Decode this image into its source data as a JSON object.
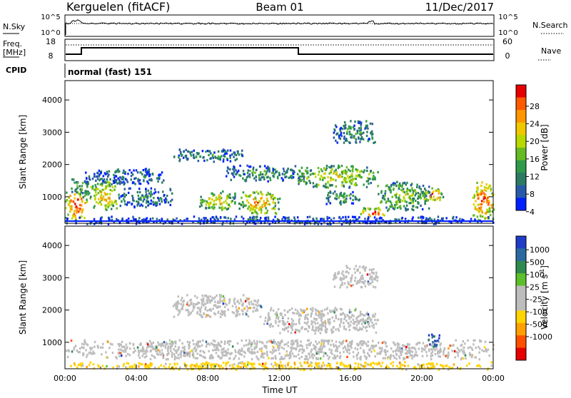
{
  "header": {
    "station": "Kerguelen (fitACF)",
    "beam": "Beam 01",
    "date": "11/Dec/2017"
  },
  "noise_panel": {
    "left_label": "N.Sky",
    "right_label": "N.Search",
    "y_ticks_left": [
      "10^5",
      "10^0"
    ],
    "y_ticks_right": [
      "10^5",
      "10^0"
    ]
  },
  "freq_panel": {
    "left_label_line1": "Freq.",
    "left_label_line2": "[MHz]",
    "right_label": "Nave",
    "y_ticks_left": [
      "18",
      "8"
    ],
    "y_ticks_right": [
      "60",
      "0"
    ]
  },
  "cpid_panel": {
    "label": "CPID",
    "program": "normal (fast) 151"
  },
  "chart_data": [
    {
      "type": "heatmap",
      "name": "power",
      "ylabel": "Slant Range [km]",
      "y_ticks": [
        1000,
        2000,
        3000,
        4000
      ],
      "xlim": [
        0,
        24
      ],
      "ylim": [
        180,
        4600
      ],
      "colorbar": {
        "label": "Power [dB]",
        "ticks": [
          "28",
          "24",
          "20",
          "16",
          "12",
          "8",
          "4"
        ],
        "colors": [
          "#e60000",
          "#ff5a00",
          "#ff9600",
          "#f0c800",
          "#b8d800",
          "#66bb22",
          "#2e9a4a",
          "#2c7a62",
          "#285aa8",
          "#0020ff"
        ]
      },
      "echo_regions": [
        {
          "t0": 0.0,
          "t1": 1.2,
          "r0": 300,
          "r1": 1300,
          "level": 0.9
        },
        {
          "t0": 0.3,
          "t1": 1.4,
          "r0": 1000,
          "r1": 1600,
          "level": 0.35
        },
        {
          "t0": 1.3,
          "t1": 3.0,
          "r0": 600,
          "r1": 1500,
          "level": 0.65
        },
        {
          "t0": 3.0,
          "t1": 6.0,
          "r0": 700,
          "r1": 1300,
          "level": 0.25
        },
        {
          "t0": 1.0,
          "t1": 5.5,
          "r0": 1400,
          "r1": 1900,
          "level": 0.2
        },
        {
          "t0": 6.0,
          "t1": 10.0,
          "r0": 2100,
          "r1": 2500,
          "level": 0.28
        },
        {
          "t0": 7.5,
          "t1": 9.5,
          "r0": 600,
          "r1": 1200,
          "level": 0.6
        },
        {
          "t0": 9.7,
          "t1": 12.0,
          "r0": 500,
          "r1": 1200,
          "level": 0.7
        },
        {
          "t0": 9.0,
          "t1": 13.0,
          "r0": 1500,
          "r1": 2000,
          "level": 0.3
        },
        {
          "t0": 13.0,
          "t1": 17.5,
          "r0": 1300,
          "r1": 2000,
          "level": 0.55
        },
        {
          "t0": 15.0,
          "t1": 17.5,
          "r0": 2700,
          "r1": 3400,
          "level": 0.3
        },
        {
          "t0": 14.5,
          "t1": 16.5,
          "r0": 800,
          "r1": 1200,
          "level": 0.35
        },
        {
          "t0": 17.5,
          "t1": 20.5,
          "r0": 600,
          "r1": 1500,
          "level": 0.45
        },
        {
          "t0": 20.0,
          "t1": 21.2,
          "r0": 900,
          "r1": 1300,
          "level": 0.75
        },
        {
          "t0": 16.5,
          "t1": 18.0,
          "r0": 400,
          "r1": 700,
          "level": 0.8
        },
        {
          "t0": 22.8,
          "t1": 24.0,
          "r0": 300,
          "r1": 1500,
          "level": 0.85
        },
        {
          "t0": 0.0,
          "t1": 24.0,
          "r0": 180,
          "r1": 420,
          "level": 0.15
        }
      ]
    },
    {
      "type": "heatmap",
      "name": "velocity",
      "ylabel": "Slant Range [km]",
      "y_ticks": [
        1000,
        2000,
        3000,
        4000
      ],
      "xlim": [
        0,
        24
      ],
      "ylim": [
        180,
        4600
      ],
      "x_ticks": [
        "00:00",
        "04:00",
        "08:00",
        "12:00",
        "16:00",
        "20:00",
        "00:00"
      ],
      "xlabel": "Time UT",
      "colorbar": {
        "label": "Velocity [m s",
        "label_sup": "-1",
        "label_end": "]",
        "ticks": [
          "1000",
          "500",
          "100",
          "25",
          "-25",
          "-100",
          "-500",
          "-1000"
        ],
        "colors": [
          "#1e3cc8",
          "#2a6aa0",
          "#2e8a4e",
          "#5cc02a",
          "#bdbdbd",
          "#bdbdbd",
          "#ffd400",
          "#ffa000",
          "#ff5000",
          "#e60000"
        ]
      },
      "echo_regions": [
        {
          "t0": 0.0,
          "t1": 24.0,
          "r0": 500,
          "r1": 1100,
          "level": 0.5
        },
        {
          "t0": 6.0,
          "t1": 11.0,
          "r0": 1800,
          "r1": 2500,
          "level": 0.5
        },
        {
          "t0": 11.0,
          "t1": 17.5,
          "r0": 1300,
          "r1": 2100,
          "level": 0.5
        },
        {
          "t0": 15.0,
          "t1": 17.5,
          "r0": 2700,
          "r1": 3400,
          "level": 0.5
        },
        {
          "t0": 20.3,
          "t1": 21.0,
          "r0": 900,
          "r1": 1300,
          "level": 0.9
        },
        {
          "t0": 0.0,
          "t1": 24.0,
          "r0": 180,
          "r1": 420,
          "level": 0.35
        }
      ]
    }
  ]
}
